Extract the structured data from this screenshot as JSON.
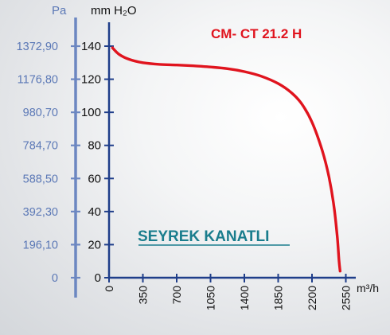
{
  "chart_data": {
    "type": "line",
    "title": "CM- CT 21.2 H",
    "annotation": "SEYREK KANATLI",
    "xlabel": "m³/h",
    "ylabel": "mm H₂O",
    "y2label": "Pa",
    "x_ticks": [
      "0",
      "350",
      "700",
      "1050",
      "1400",
      "1850",
      "2200",
      "2550"
    ],
    "y_ticks": [
      "0",
      "20",
      "40",
      "60",
      "80",
      "100",
      "120",
      "140"
    ],
    "y2_ticks": [
      "0",
      "196,10",
      "392,30",
      "588,50",
      "784,70",
      "980,70",
      "1176,80",
      "1372,90"
    ],
    "ylim": [
      0,
      140
    ],
    "series": [
      {
        "color": "#e0141e",
        "points": [
          [
            0.1,
            139
          ],
          [
            0.3,
            135
          ],
          [
            0.6,
            132
          ],
          [
            1.0,
            130
          ],
          [
            1.5,
            129
          ],
          [
            2.0,
            128.6
          ],
          [
            2.5,
            128.1
          ],
          [
            3.0,
            127.4
          ],
          [
            3.5,
            126.4
          ],
          [
            4.0,
            124.6
          ],
          [
            4.5,
            121.8
          ],
          [
            5.0,
            117.4
          ],
          [
            5.4,
            111.7
          ],
          [
            5.7,
            105
          ],
          [
            6.0,
            94
          ],
          [
            6.3,
            77
          ],
          [
            6.5,
            61
          ],
          [
            6.65,
            43
          ],
          [
            6.75,
            24
          ],
          [
            6.8,
            10
          ],
          [
            6.83,
            4
          ]
        ]
      }
    ],
    "colors": {
      "axis": "#1f3e8a",
      "secondary_axis": "#6c87c1",
      "series": "#e0141e"
    }
  }
}
